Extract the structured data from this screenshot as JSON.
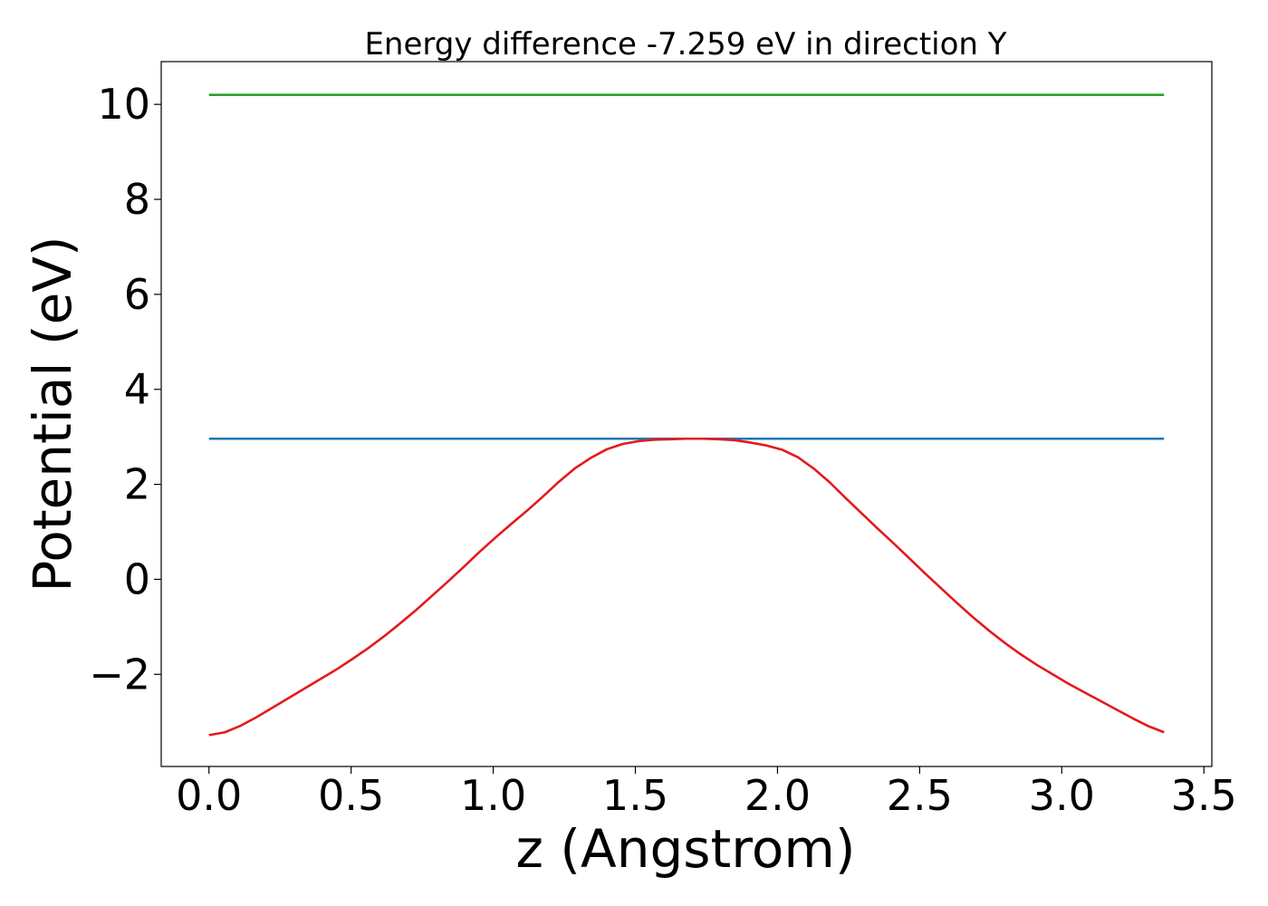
{
  "chart_data": {
    "type": "line",
    "title": "Energy difference -7.259 eV in direction Y",
    "xlabel": "z (Angstrom)",
    "ylabel": "Potential (eV)",
    "xlim": [
      -0.168,
      3.528
    ],
    "ylim": [
      -3.94,
      10.9
    ],
    "xticks": [
      0.0,
      0.5,
      1.0,
      1.5,
      2.0,
      2.5,
      3.0,
      3.5
    ],
    "xtick_labels": [
      "0.0",
      "0.5",
      "1.0",
      "1.5",
      "2.0",
      "2.5",
      "3.0",
      "3.5"
    ],
    "yticks": [
      -2,
      0,
      2,
      4,
      6,
      8,
      10
    ],
    "ytick_labels": [
      "−2",
      "0",
      "2",
      "4",
      "6",
      "8",
      "10"
    ],
    "grid": false,
    "series": [
      {
        "color": "#2ca02c",
        "x": [
          0.0,
          3.36
        ],
        "y": [
          10.2,
          10.2
        ]
      },
      {
        "color": "#1f77b4",
        "x": [
          0.0,
          3.36
        ],
        "y": [
          2.96,
          2.96
        ]
      },
      {
        "color": "#e41a1c",
        "x": [
          0.0,
          0.056,
          0.112,
          0.168,
          0.224,
          0.28,
          0.336,
          0.392,
          0.448,
          0.504,
          0.56,
          0.616,
          0.672,
          0.728,
          0.784,
          0.84,
          0.896,
          0.952,
          1.008,
          1.064,
          1.12,
          1.176,
          1.232,
          1.288,
          1.344,
          1.4,
          1.456,
          1.512,
          1.568,
          1.624,
          1.68,
          1.736,
          1.792,
          1.848,
          1.904,
          1.96,
          2.016,
          2.072,
          2.128,
          2.184,
          2.24,
          2.296,
          2.352,
          2.408,
          2.464,
          2.52,
          2.576,
          2.632,
          2.688,
          2.744,
          2.8,
          2.856,
          2.912,
          2.968,
          3.024,
          3.08,
          3.136,
          3.192,
          3.248,
          3.304,
          3.36
        ],
        "y": [
          -3.28,
          -3.22,
          -3.08,
          -2.9,
          -2.7,
          -2.5,
          -2.3,
          -2.1,
          -1.9,
          -1.68,
          -1.45,
          -1.2,
          -0.93,
          -0.65,
          -0.35,
          -0.05,
          0.26,
          0.58,
          0.88,
          1.17,
          1.45,
          1.75,
          2.06,
          2.34,
          2.56,
          2.74,
          2.85,
          2.91,
          2.94,
          2.95,
          2.96,
          2.96,
          2.95,
          2.93,
          2.88,
          2.82,
          2.73,
          2.57,
          2.33,
          2.04,
          1.71,
          1.39,
          1.07,
          0.76,
          0.44,
          0.12,
          -0.19,
          -0.5,
          -0.8,
          -1.08,
          -1.34,
          -1.58,
          -1.8,
          -2.0,
          -2.2,
          -2.38,
          -2.56,
          -2.74,
          -2.92,
          -3.09,
          -3.22
        ]
      }
    ]
  }
}
